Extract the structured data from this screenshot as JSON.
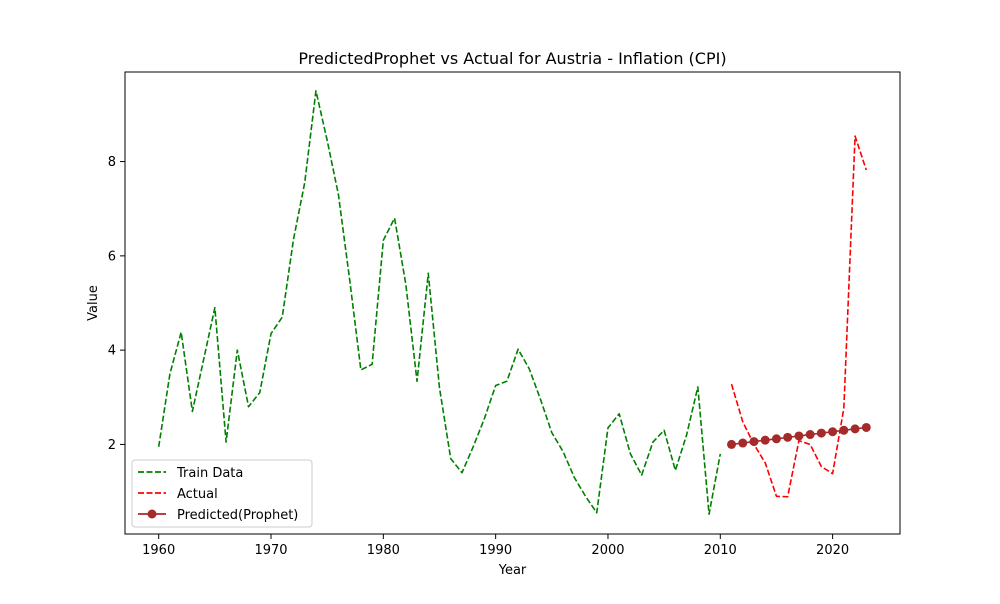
{
  "chart_data": {
    "type": "line",
    "title": "PredictedProphet vs Actual for Austria - Inflation (CPI)",
    "xlabel": "Year",
    "ylabel": "Value",
    "xlim": [
      1957,
      2026
    ],
    "ylim": [
      0.1,
      9.9
    ],
    "x_ticks": [
      1960,
      1970,
      1980,
      1990,
      2000,
      2010,
      2020
    ],
    "y_ticks": [
      2,
      4,
      6,
      8
    ],
    "grid": false,
    "legend_position": "lower-left",
    "series": [
      {
        "name": "Train Data",
        "style": "dashed",
        "color": "#008000",
        "x": [
          1960,
          1961,
          1962,
          1963,
          1964,
          1965,
          1966,
          1967,
          1968,
          1969,
          1970,
          1971,
          1972,
          1973,
          1974,
          1975,
          1976,
          1977,
          1978,
          1979,
          1980,
          1981,
          1982,
          1983,
          1984,
          1985,
          1986,
          1987,
          1988,
          1989,
          1990,
          1991,
          1992,
          1993,
          1994,
          1995,
          1996,
          1997,
          1998,
          1999,
          2000,
          2001,
          2002,
          2003,
          2004,
          2005,
          2006,
          2007,
          2008,
          2009,
          2010
        ],
        "values": [
          1.95,
          3.5,
          4.38,
          2.7,
          3.8,
          4.9,
          2.05,
          4.0,
          2.8,
          3.1,
          4.35,
          4.7,
          6.35,
          7.55,
          9.5,
          8.45,
          7.3,
          5.5,
          3.58,
          3.7,
          6.33,
          6.8,
          5.4,
          3.34,
          5.63,
          3.2,
          1.7,
          1.4,
          1.95,
          2.55,
          3.25,
          3.34,
          4.02,
          3.6,
          2.95,
          2.25,
          1.85,
          1.3,
          0.9,
          0.55,
          2.35,
          2.65,
          1.8,
          1.35,
          2.05,
          2.3,
          1.45,
          2.2,
          3.22,
          0.52,
          1.8
        ]
      },
      {
        "name": "Actual",
        "style": "dashed",
        "color": "#ff0000",
        "x": [
          2011,
          2012,
          2013,
          2014,
          2015,
          2016,
          2017,
          2018,
          2019,
          2020,
          2021,
          2022,
          2023
        ],
        "values": [
          3.28,
          2.48,
          2.0,
          1.61,
          0.9,
          0.89,
          2.08,
          2.0,
          1.53,
          1.38,
          2.77,
          8.54,
          7.82
        ]
      },
      {
        "name": "Predicted(Prophet)",
        "style": "solid-markers",
        "color": "#a52a2a",
        "x": [
          2011,
          2012,
          2013,
          2014,
          2015,
          2016,
          2017,
          2018,
          2019,
          2020,
          2021,
          2022,
          2023
        ],
        "values": [
          2.0,
          2.03,
          2.06,
          2.09,
          2.12,
          2.15,
          2.18,
          2.21,
          2.24,
          2.27,
          2.3,
          2.33,
          2.36
        ]
      }
    ]
  }
}
